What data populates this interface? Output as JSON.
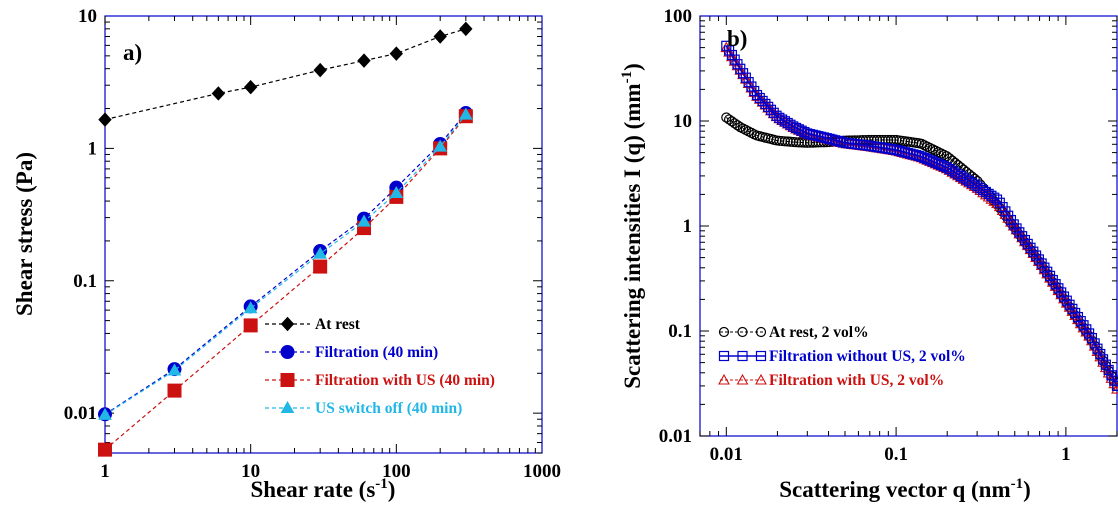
{
  "chart_data": [
    {
      "type": "scatter",
      "panel_label": "a)",
      "xlabel": "Shear rate (s",
      "xlabel_sup": "-1",
      "xlabel_end": ")",
      "ylabel": "Shear stress  (Pa)",
      "xscale": "log",
      "yscale": "log",
      "xlim": [
        1,
        1000
      ],
      "ylim": [
        0.005,
        10
      ],
      "x_ticks": [
        1,
        10,
        100,
        1000
      ],
      "x_tick_labels": [
        "1",
        "10",
        "100",
        "1000"
      ],
      "y_ticks": [
        0.01,
        0.1,
        1,
        10
      ],
      "y_tick_labels": [
        "0.01",
        "0.1",
        "1",
        "10"
      ],
      "legend_position": "bottom-right",
      "series": [
        {
          "name": "At rest",
          "color": "#000000",
          "marker": "diamond",
          "x": [
            1,
            6,
            10,
            30,
            60,
            100,
            200,
            300
          ],
          "y": [
            1.65,
            2.6,
            2.9,
            3.9,
            4.6,
            5.2,
            7.0,
            8.0
          ]
        },
        {
          "name": "Filtration (40 min)",
          "color": "#0000cc",
          "marker": "circle",
          "x": [
            1,
            3,
            10,
            30,
            60,
            100,
            200,
            300
          ],
          "y": [
            0.0098,
            0.0215,
            0.064,
            0.168,
            0.295,
            0.505,
            1.08,
            1.85
          ]
        },
        {
          "name": "Filtration with US (40 min)",
          "color": "#cc1111",
          "marker": "square",
          "x": [
            1,
            3,
            10,
            30,
            60,
            100,
            200,
            300
          ],
          "y": [
            0.0053,
            0.0148,
            0.046,
            0.128,
            0.25,
            0.43,
            1.0,
            1.75
          ]
        },
        {
          "name": "US switch off (40 min)",
          "color": "#22b8e6",
          "marker": "triangle",
          "x": [
            1,
            3,
            10,
            30,
            60,
            100,
            200,
            300
          ],
          "y": [
            0.0097,
            0.021,
            0.062,
            0.16,
            0.28,
            0.46,
            1.03,
            1.8
          ]
        }
      ]
    },
    {
      "type": "scatter",
      "panel_label": "b)",
      "xlabel": "Scattering vector q (nm",
      "xlabel_sup": "-1",
      "xlabel_end": ")",
      "ylabel": "Scattering intensities I (q) (mm",
      "ylabel_sup": "-1",
      "ylabel_end": ")",
      "xscale": "log",
      "yscale": "log",
      "xlim": [
        0.007,
        2
      ],
      "ylim": [
        0.01,
        100
      ],
      "x_ticks": [
        0.01,
        0.1,
        1
      ],
      "x_tick_labels": [
        "0.01",
        "0.1",
        "1"
      ],
      "y_ticks": [
        0.01,
        0.1,
        1,
        10,
        100
      ],
      "y_tick_labels": [
        "0.01",
        "0.1",
        "1",
        "10",
        "100"
      ],
      "legend_position": "bottom-left",
      "series": [
        {
          "name": "At rest, 2 vol%",
          "color": "#000000",
          "marker": "circle-open",
          "x": [
            0.01,
            0.012,
            0.015,
            0.02,
            0.025,
            0.03,
            0.04,
            0.05,
            0.07,
            0.1,
            0.14,
            0.2,
            0.3,
            0.4,
            0.5,
            0.7,
            1.0,
            1.4,
            2.0
          ],
          "y": [
            10.8,
            8.8,
            7.3,
            6.5,
            6.3,
            6.2,
            6.3,
            6.5,
            6.6,
            6.6,
            6.1,
            4.6,
            2.7,
            1.55,
            0.95,
            0.45,
            0.19,
            0.085,
            0.03
          ]
        },
        {
          "name": "Filtration without US, 2 vol%",
          "color": "#0000cc",
          "marker": "square-open",
          "x": [
            0.01,
            0.012,
            0.015,
            0.02,
            0.025,
            0.03,
            0.04,
            0.05,
            0.07,
            0.1,
            0.14,
            0.2,
            0.3,
            0.4,
            0.5,
            0.7,
            1.0,
            1.4,
            2.0
          ],
          "y": [
            52,
            32,
            18,
            11,
            8.8,
            7.6,
            6.8,
            6.2,
            5.8,
            5.3,
            4.6,
            3.6,
            2.4,
            1.75,
            1.0,
            0.47,
            0.2,
            0.09,
            0.03
          ]
        },
        {
          "name": "Filtration with US, 2 vol%",
          "color": "#cc1111",
          "marker": "triangle-open",
          "x": [
            0.01,
            0.012,
            0.015,
            0.02,
            0.025,
            0.03,
            0.04,
            0.05,
            0.07,
            0.1,
            0.14,
            0.2,
            0.3,
            0.4,
            0.5,
            0.7,
            1.0,
            1.4,
            2.0
          ],
          "y": [
            50,
            31,
            17.5,
            10.8,
            8.6,
            7.5,
            6.7,
            6.1,
            5.7,
            5.2,
            4.5,
            3.5,
            2.3,
            1.6,
            0.97,
            0.45,
            0.19,
            0.085,
            0.028
          ]
        }
      ]
    }
  ]
}
